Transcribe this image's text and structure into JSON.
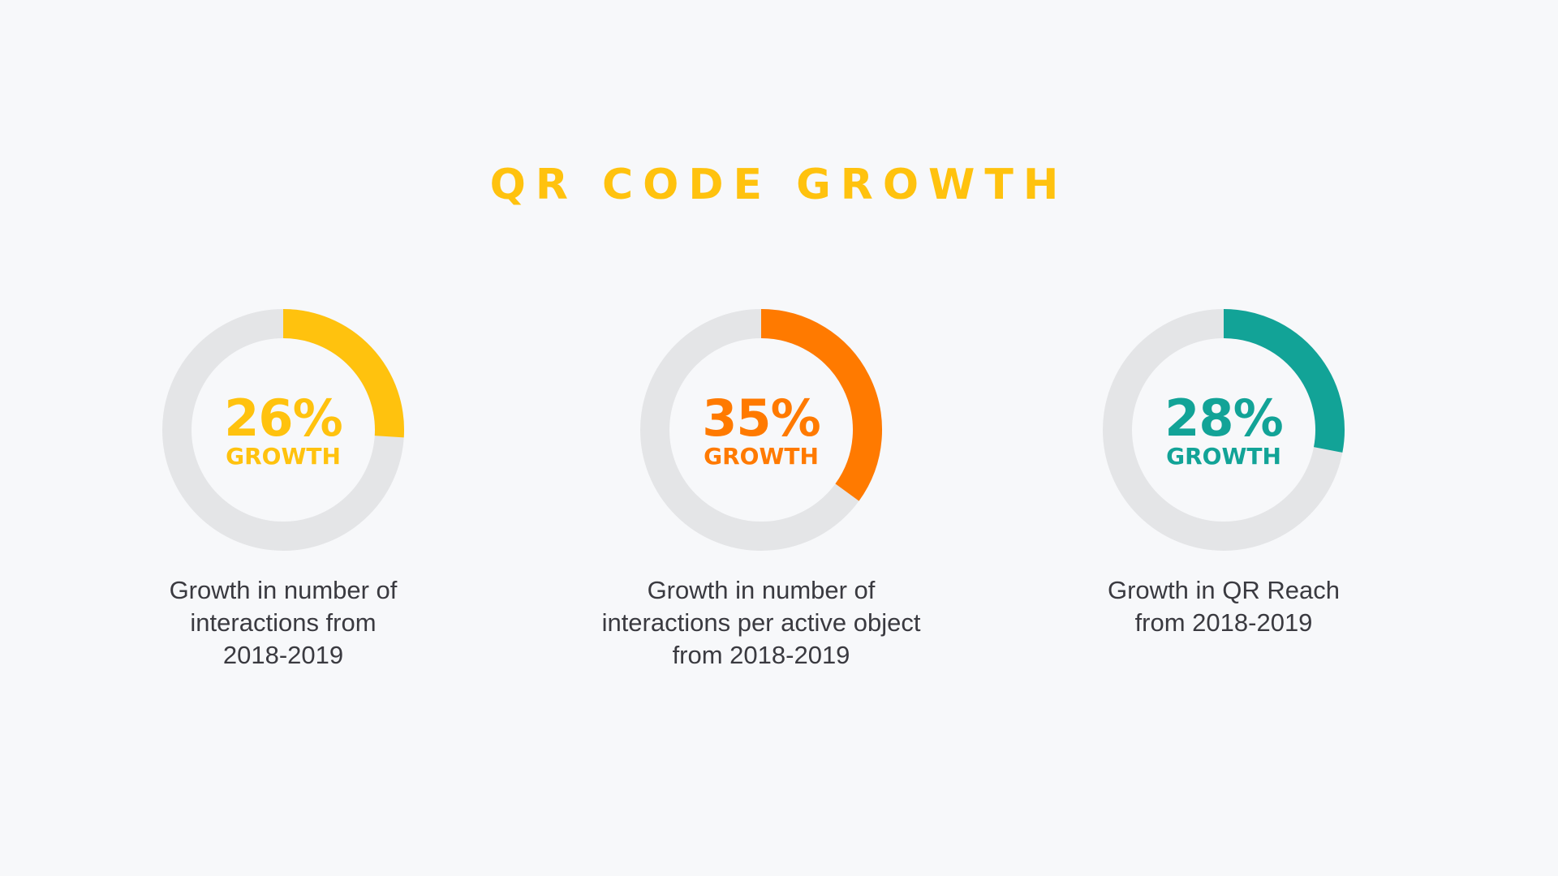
{
  "title": "QR CODE GROWTH",
  "colors": {
    "background": "#f7f8fa",
    "track": "#e4e5e7",
    "title": "#ffc20e"
  },
  "chart_data": [
    {
      "type": "pie",
      "value": 26,
      "label": "26%",
      "sublabel": "GROWTH",
      "caption": [
        "Growth in number of",
        "interactions from",
        "2018-2019"
      ],
      "color": "#ffc20e"
    },
    {
      "type": "pie",
      "value": 35,
      "label": "35%",
      "sublabel": "GROWTH",
      "caption": [
        "Growth in number of",
        "interactions per active object",
        "from 2018-2019"
      ],
      "color": "#ff7a00"
    },
    {
      "type": "pie",
      "value": 28,
      "label": "28%",
      "sublabel": "GROWTH",
      "caption": [
        "Growth in QR Reach",
        "from 2018-2019"
      ],
      "color": "#12a397"
    }
  ]
}
